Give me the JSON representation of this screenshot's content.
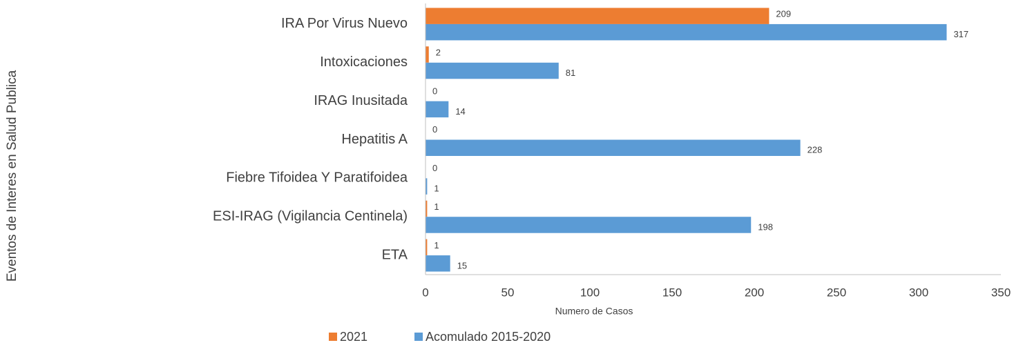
{
  "chart_data": {
    "type": "barh",
    "categories": [
      "IRA Por Virus Nuevo",
      "Intoxicaciones",
      "IRAG Inusitada",
      "Hepatitis A",
      "Fiebre Tifoidea Y Paratifoidea",
      "ESI-IRAG (Vigilancia Centinela)",
      "ETA"
    ],
    "series": [
      {
        "name": "2021",
        "color": "#ED7D31",
        "values": [
          209,
          2,
          0,
          0,
          0,
          1,
          1
        ]
      },
      {
        "name": "Acomulado 2015-2020",
        "color": "#5B9BD5",
        "values": [
          317,
          81,
          14,
          228,
          1,
          198,
          15
        ]
      }
    ],
    "xlabel": "Numero de Casos",
    "ylabel": "Eventos de Interes en Salud Publica",
    "xlim": [
      0,
      350
    ],
    "xticks": [
      0,
      50,
      100,
      150,
      200,
      250,
      300,
      350
    ],
    "legend": "bottom"
  }
}
